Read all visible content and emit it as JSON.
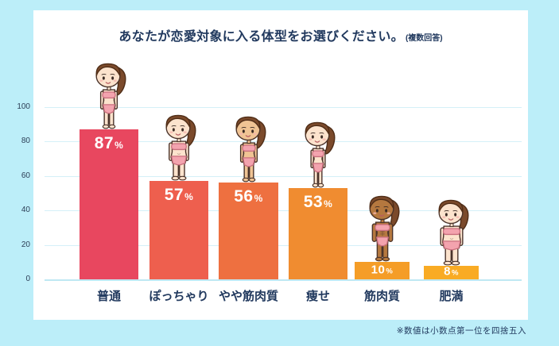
{
  "page": {
    "background_color": "#bceef9",
    "title_main": "あなたが恋愛対象に入る体型をお選びください。",
    "title_note": "(複数回答)",
    "footnote": "※数値は小数点第一位を四捨五入",
    "title_color": "#21395e"
  },
  "chart_data": {
    "type": "bar",
    "title": "あなたが恋愛対象に入る体型をお選びください。(複数回答)",
    "categories": [
      "普通",
      "ぽっちゃり",
      "やや筋肉質",
      "痩せ",
      "筋肉質",
      "肥満"
    ],
    "values": [
      87,
      57,
      56,
      53,
      10,
      8
    ],
    "unit": "%",
    "value_labels": [
      "87%",
      "57%",
      "56%",
      "53%",
      "10%",
      "8%"
    ],
    "bar_colors": [
      "#e8475f",
      "#ee5f4e",
      "#ee7040",
      "#f08c30",
      "#f59d27",
      "#f9ab24"
    ],
    "y_ticks": [
      0,
      20,
      40,
      60,
      80,
      100
    ],
    "ylim": [
      0,
      100
    ],
    "grid": true,
    "legend": false,
    "xlabel": "",
    "ylabel": "",
    "footnote": "※数値は小数点第一位を四捨五入",
    "figures": [
      {
        "name": "figure-normal-icon",
        "build": "normal",
        "skin": "#fce3cd"
      },
      {
        "name": "figure-chubby-icon",
        "build": "chubby",
        "skin": "#fce3cd"
      },
      {
        "name": "figure-slightly-muscular-icon",
        "build": "normal",
        "skin": "#f0c494"
      },
      {
        "name": "figure-thin-icon",
        "build": "thin",
        "skin": "#fce3cd"
      },
      {
        "name": "figure-muscular-icon",
        "build": "muscular",
        "skin": "#b5783f"
      },
      {
        "name": "figure-obese-icon",
        "build": "obese",
        "skin": "#fce3cd"
      }
    ]
  }
}
